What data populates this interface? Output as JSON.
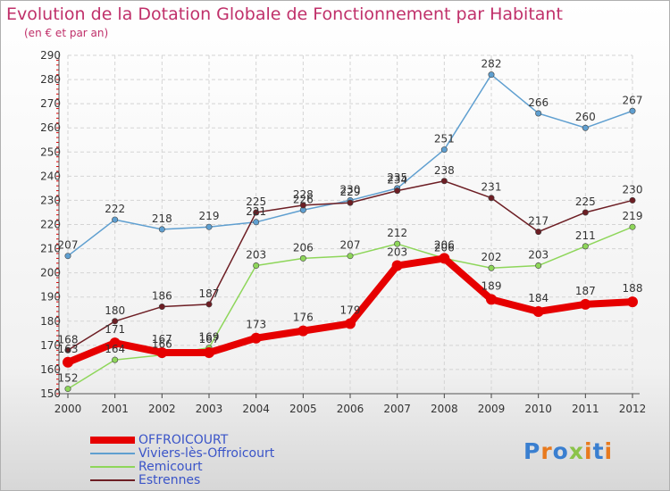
{
  "title": "Evolution de la Dotation Globale de Fonctionnement par Habitant",
  "subtitle": "(en € et par an)",
  "logo": "Proxiti",
  "chart_data": {
    "type": "line",
    "x": [
      "2000",
      "2001",
      "2002",
      "2003",
      "2004",
      "2005",
      "2006",
      "2007",
      "2008",
      "2009",
      "2010",
      "2011",
      "2012"
    ],
    "ylim": [
      150,
      290
    ],
    "yticks": [
      150,
      160,
      170,
      180,
      190,
      200,
      210,
      220,
      230,
      240,
      250,
      260,
      270,
      280,
      290
    ],
    "grid": true,
    "legend_position": "bottom-left",
    "series": [
      {
        "name": "Viviers-lès-Offroicourt",
        "color": "#5f9fd0",
        "values": [
          207,
          222,
          218,
          219,
          221,
          226,
          230,
          235,
          251,
          282,
          266,
          260,
          267
        ]
      },
      {
        "name": "Remicourt",
        "color": "#8ed65a",
        "values": [
          152,
          164,
          166,
          169,
          203,
          206,
          207,
          212,
          206,
          202,
          203,
          211,
          219
        ]
      },
      {
        "name": "Estrennes",
        "color": "#6d1e24",
        "values": [
          168,
          180,
          186,
          187,
          225,
          228,
          229,
          234,
          238,
          231,
          217,
          225,
          230
        ]
      },
      {
        "name": "OFFROICOURT",
        "color": "#e60000",
        "values": [
          163,
          171,
          167,
          167,
          173,
          176,
          179,
          203,
          206,
          189,
          184,
          187,
          188
        ]
      }
    ]
  }
}
